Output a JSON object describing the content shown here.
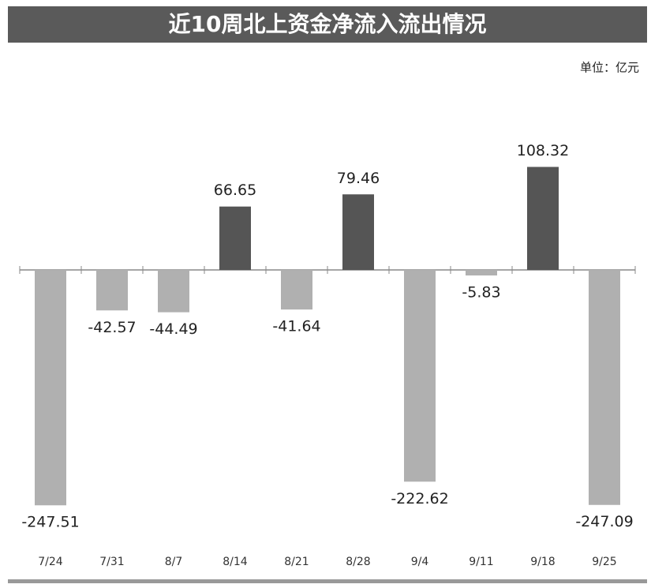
{
  "chart_data": {
    "type": "bar",
    "title": "近10周北上资金净流入流出情况",
    "unit": "单位：亿元",
    "categories": [
      "7/24",
      "7/31",
      "8/7",
      "8/14",
      "8/21",
      "8/28",
      "9/4",
      "9/11",
      "9/18",
      "9/25"
    ],
    "values": [
      -247.51,
      -42.57,
      -44.49,
      66.65,
      -41.64,
      79.46,
      -222.62,
      -5.83,
      108.32,
      -247.09
    ],
    "positive_color": "#555555",
    "negative_color": "#b0b0b0"
  }
}
